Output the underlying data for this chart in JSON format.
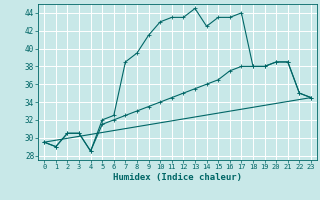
{
  "xlabel": "Humidex (Indice chaleur)",
  "xlim": [
    -0.5,
    23.5
  ],
  "ylim": [
    27.5,
    45
  ],
  "yticks": [
    28,
    30,
    32,
    34,
    36,
    38,
    40,
    42,
    44
  ],
  "xticks": [
    0,
    1,
    2,
    3,
    4,
    5,
    6,
    7,
    8,
    9,
    10,
    11,
    12,
    13,
    14,
    15,
    16,
    17,
    18,
    19,
    20,
    21,
    22,
    23
  ],
  "bg_color": "#c8e8e8",
  "line_color": "#006666",
  "grid_color": "#ffffff",
  "line1_x": [
    0,
    1,
    2,
    3,
    4,
    5,
    6,
    7,
    8,
    9,
    10,
    11,
    12,
    13,
    14,
    15,
    16,
    17,
    18,
    19,
    20,
    21,
    22,
    23
  ],
  "line1_y": [
    29.5,
    29.0,
    30.5,
    30.5,
    28.5,
    32.0,
    32.5,
    38.5,
    39.5,
    41.5,
    43.0,
    43.5,
    43.5,
    44.5,
    42.5,
    43.5,
    43.5,
    44.0,
    38.0,
    38.0,
    38.5,
    38.5,
    35.0,
    34.5
  ],
  "line2_x": [
    0,
    1,
    2,
    3,
    4,
    5,
    6,
    7,
    8,
    9,
    10,
    11,
    12,
    13,
    14,
    15,
    16,
    17,
    18,
    19,
    20,
    21,
    22,
    23
  ],
  "line2_y": [
    29.5,
    29.0,
    30.5,
    30.5,
    28.5,
    31.5,
    32.0,
    32.5,
    33.0,
    33.5,
    34.0,
    34.5,
    35.0,
    35.5,
    36.0,
    36.5,
    37.5,
    38.0,
    38.0,
    38.0,
    38.5,
    38.5,
    35.0,
    34.5
  ],
  "line3_x": [
    0,
    23
  ],
  "line3_y": [
    29.5,
    34.5
  ]
}
